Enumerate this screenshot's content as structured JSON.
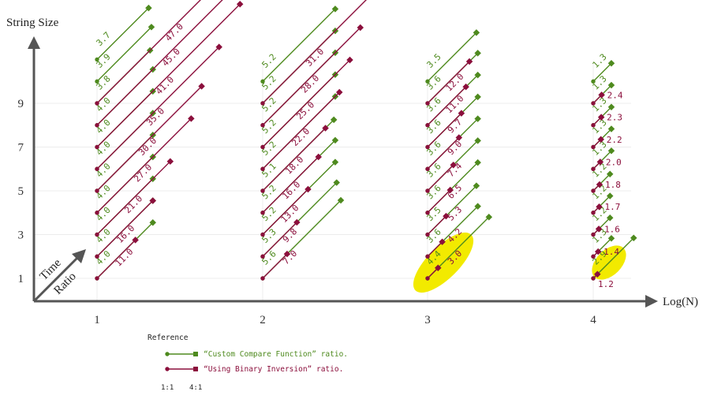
{
  "chart_data": {
    "type": "line",
    "xlabel": "Log(N)",
    "ylabel": "String Size",
    "corner_label_line1": "Time",
    "corner_label_line2": "Ratio",
    "x_ticks": [
      "1",
      "2",
      "3",
      "4"
    ],
    "y_ticks": [
      "1",
      "3",
      "5",
      "7",
      "9"
    ],
    "grid": true,
    "colors": {
      "green": "#4e8a1e",
      "red": "#8b0f3c",
      "highlight": "#f2ea00",
      "axis": "#555555"
    },
    "series": [
      {
        "name": "Custom Compare Function",
        "x": 1,
        "values": [
          4.0,
          4.0,
          4.0,
          4.0,
          4.0,
          4.0,
          4.0,
          4.0,
          3.8,
          3.9,
          3.7
        ]
      },
      {
        "name": "Using Binary Inversion",
        "x": 1,
        "values": [
          11.0,
          16.0,
          21.0,
          27.0,
          30.0,
          35.0,
          41.0,
          45.0,
          47.0
        ]
      },
      {
        "name": "Custom Compare Function",
        "x": 2,
        "values": [
          5.6,
          5.3,
          5.2,
          5.2,
          5.1,
          5.2,
          5.2,
          5.2,
          5.2,
          5.2
        ]
      },
      {
        "name": "Using Binary Inversion",
        "x": 2,
        "values": [
          7.0,
          9.8,
          13.0,
          16.0,
          18.0,
          22.0,
          25.0,
          28.0,
          31.0
        ]
      },
      {
        "name": "Custom Compare Function",
        "x": 3,
        "values": [
          4.4,
          3.6,
          3.5,
          3.6,
          3.6,
          3.6,
          3.6,
          3.6,
          3.6,
          3.5
        ]
      },
      {
        "name": "Using Binary Inversion",
        "x": 3,
        "values": [
          3.0,
          4.2,
          5.3,
          6.5,
          7.4,
          9.0,
          9.7,
          11.0,
          12.0
        ]
      },
      {
        "name": "Custom Compare Function",
        "x": 4,
        "values": [
          2.9,
          1.3,
          1.2,
          1.2,
          1.2,
          1.3,
          1.3,
          1.3,
          1.3,
          1.3
        ]
      },
      {
        "name": "Using Binary Inversion",
        "x": 4,
        "values": [
          1.2,
          1.4,
          1.6,
          1.7,
          1.8,
          2.0,
          2.2,
          2.3,
          2.4
        ]
      }
    ],
    "legend": {
      "title": "Reference",
      "items": [
        {
          "label": "“Custom Compare Function” ratio.",
          "series": "Custom Compare Function"
        },
        {
          "label": "“Using Binary Inversion” ratio.",
          "series": "Using Binary Inversion"
        }
      ],
      "scale_left": "1:1",
      "scale_right": "4:1",
      "placement": "bottom-left"
    },
    "highlighted": [
      {
        "x": 3,
        "row": 0
      },
      {
        "x": 4,
        "row": 0
      }
    ]
  }
}
